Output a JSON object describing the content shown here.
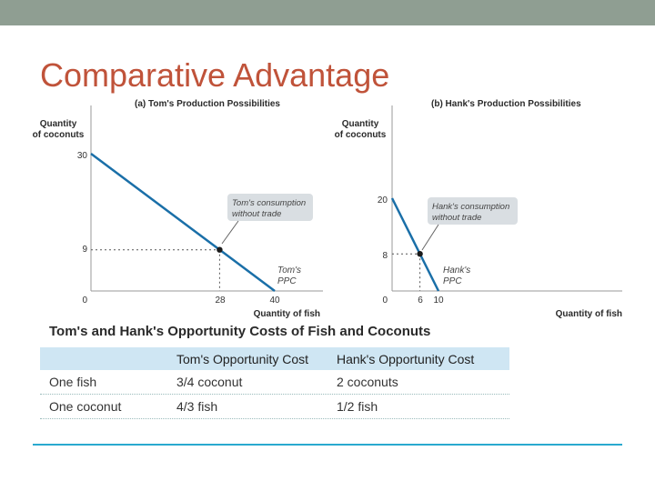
{
  "slide": {
    "title": "Comparative Advantage",
    "accent_colors": {
      "topbar": "#8f9e92",
      "title": "#c0533a",
      "series": "#1a6fa8",
      "header_row": "#cfe6f3",
      "rule": "#2aa9cf",
      "callout": "#d9dee2"
    }
  },
  "chart_data": [
    {
      "type": "line",
      "title": "(a) Tom's Production Possibilities",
      "ylabel_lines": [
        "Quantity",
        "of coconuts"
      ],
      "xlabel": "Quantity of fish",
      "xlim": [
        0,
        40
      ],
      "ylim": [
        0,
        30
      ],
      "xticks": [
        "0",
        "28",
        "40"
      ],
      "yticks": [
        "0",
        "9",
        "30"
      ],
      "series": [
        {
          "name": "Tom's PPC",
          "x": [
            0,
            40
          ],
          "y": [
            30,
            0
          ]
        }
      ],
      "series_label_lines": [
        "Tom's",
        "PPC"
      ],
      "point": {
        "x": 28,
        "y": 9
      },
      "annotation_lines": [
        "Tom's consumption",
        "without trade"
      ]
    },
    {
      "type": "line",
      "title": "(b) Hank's Production Possibilities",
      "ylabel_lines": [
        "Quantity",
        "of coconuts"
      ],
      "xlabel": "Quantity of fish",
      "xlim": [
        0,
        10
      ],
      "ylim": [
        0,
        20
      ],
      "xticks": [
        "0",
        "6",
        "10"
      ],
      "yticks": [
        "0",
        "8",
        "20"
      ],
      "series": [
        {
          "name": "Hank's PPC",
          "x": [
            0,
            10
          ],
          "y": [
            20,
            0
          ]
        }
      ],
      "series_label_lines": [
        "Hank's",
        "PPC"
      ],
      "point": {
        "x": 6,
        "y": 8
      },
      "annotation_lines": [
        "Hank's consumption",
        "without trade"
      ]
    }
  ],
  "table": {
    "title": "Tom's and Hank's Opportunity Costs of Fish and Coconuts",
    "headers": [
      "",
      "Tom's Opportunity Cost",
      "Hank's Opportunity Cost"
    ],
    "rows": [
      [
        "One fish",
        "3/4 coconut",
        "2 coconuts"
      ],
      [
        "One coconut",
        "4/3 fish",
        "1/2 fish"
      ]
    ]
  }
}
